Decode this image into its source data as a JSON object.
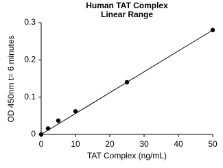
{
  "chart_data": {
    "type": "scatter",
    "title": "Human TAT Complex",
    "subtitle": "Linear Range",
    "x_label": "TAT Complex (ng/mL)",
    "y_label": "OD 450nm t= 6 minutes",
    "x": [
      0,
      2,
      5,
      10,
      25,
      50
    ],
    "values": [
      0,
      0.016,
      0.037,
      0.062,
      0.14,
      0.28
    ],
    "color": "#000000",
    "trendline": {
      "x": [
        0,
        50
      ],
      "values": [
        0,
        0.28
      ],
      "color": "#000000"
    },
    "xlim": [
      0,
      50
    ],
    "xticks": [
      0,
      10,
      20,
      30,
      40,
      50
    ],
    "ylim": [
      0,
      0.3
    ],
    "yticks": [
      0,
      0.1,
      0.2,
      0.3
    ],
    "grid": false
  }
}
